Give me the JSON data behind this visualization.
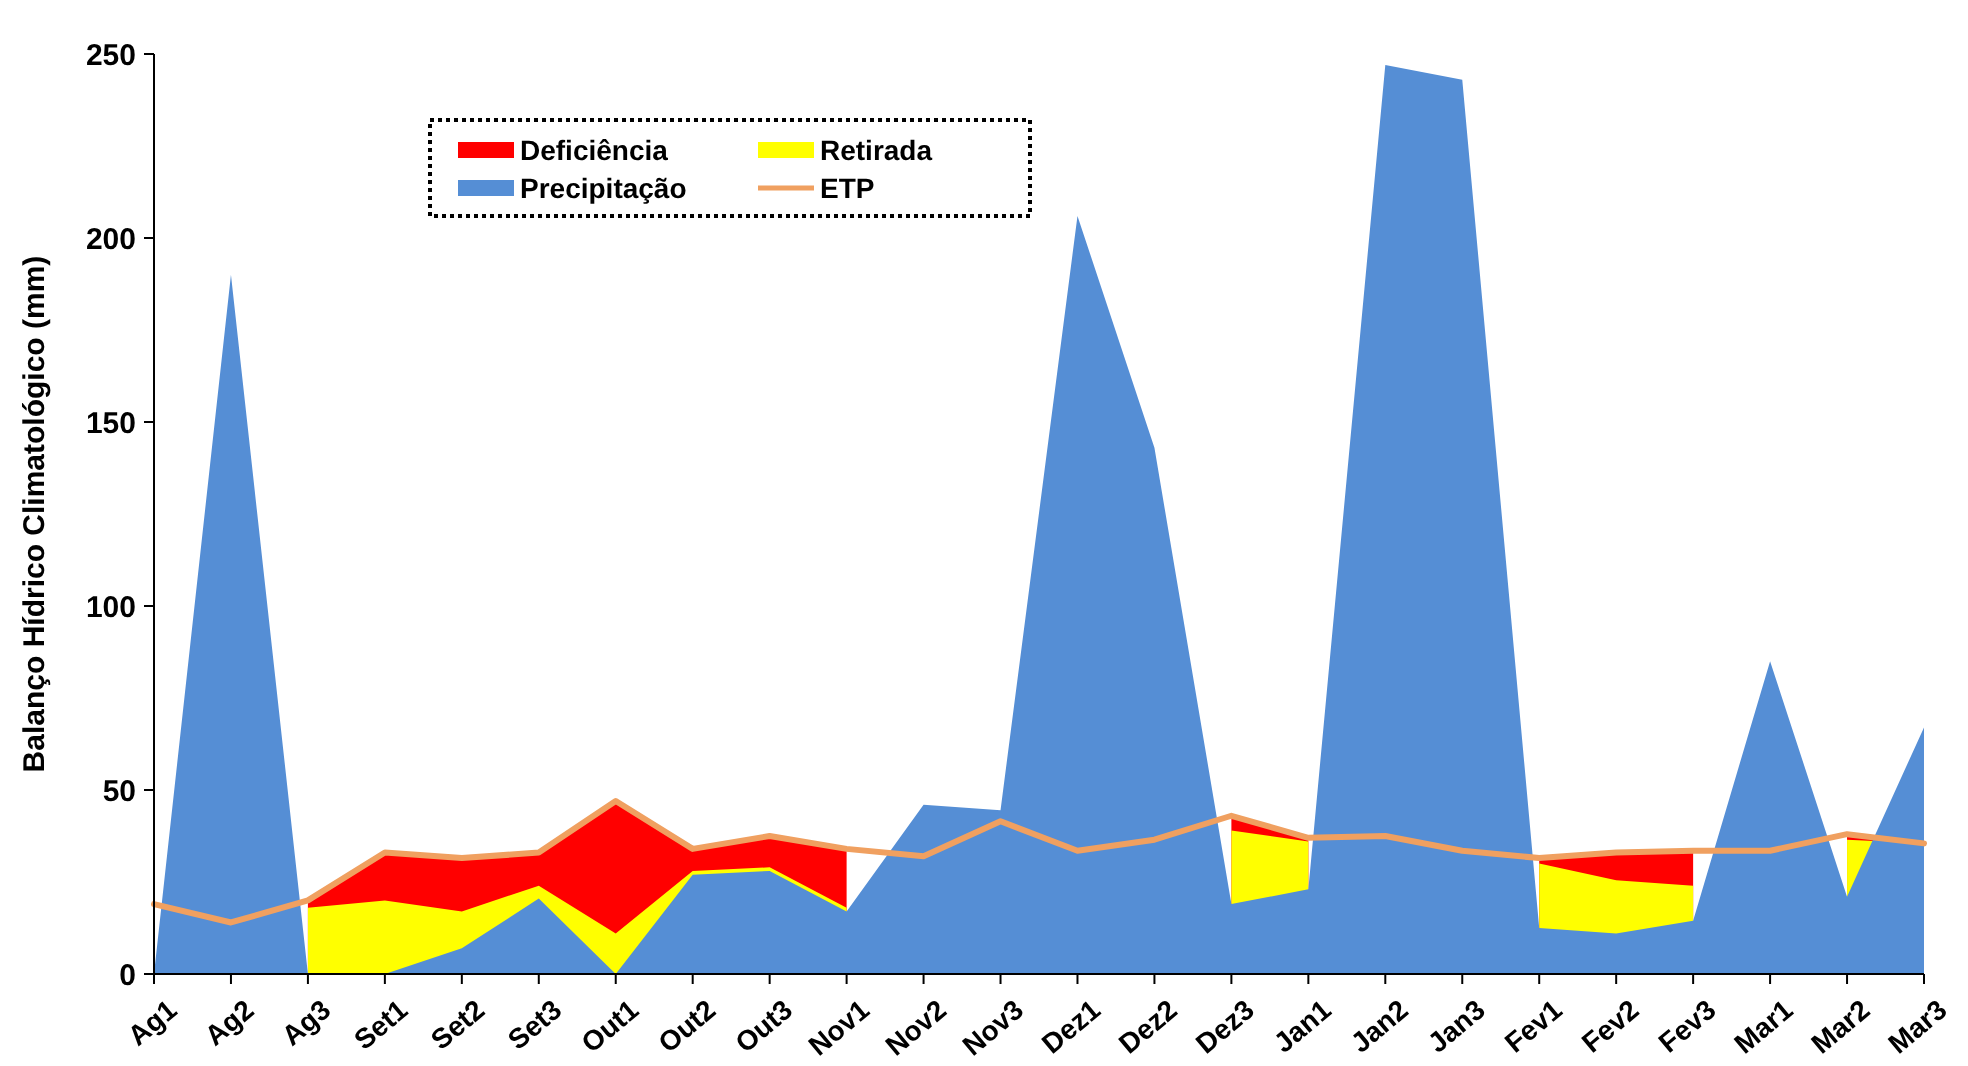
{
  "chart_data": {
    "type": "area",
    "ylabel": "Balanço Hídrico Climatológico  (mm)",
    "categories": [
      "Ag1",
      "Ag2",
      "Ag3",
      "Set1",
      "Set2",
      "Set3",
      "Out1",
      "Out2",
      "Out3",
      "Nov1",
      "Nov2",
      "Nov3",
      "Dez1",
      "Dez2",
      "Dez3",
      "Jan1",
      "Jan2",
      "Jan3",
      "Fev1",
      "Fev2",
      "Fev3",
      "Mar1",
      "Mar2",
      "Mar3"
    ],
    "ylim": [
      0,
      250
    ],
    "yticks": [
      0,
      50,
      100,
      150,
      200,
      250
    ],
    "grid": false,
    "legend": "top",
    "line_style": "solid",
    "marker": "none",
    "series": [
      {
        "name": "Deficiência",
        "color": "#ff0000",
        "values": [
          null,
          null,
          20,
          33,
          31.5,
          33,
          47,
          34,
          37.5,
          34,
          null,
          null,
          null,
          null,
          43,
          37,
          null,
          null,
          31.5,
          33,
          33.5,
          null,
          38,
          35.5
        ]
      },
      {
        "name": "Retirada",
        "color": "#ffff00",
        "values": [
          null,
          null,
          18,
          20,
          17,
          24,
          11,
          28,
          29,
          18,
          null,
          null,
          null,
          null,
          39,
          36,
          null,
          null,
          30,
          25.5,
          24,
          null,
          36.5,
          35.5
        ]
      },
      {
        "name": "Precipitação",
        "color": "#558ed5",
        "values": [
          0,
          190,
          0,
          0,
          7,
          20.5,
          0,
          27,
          28,
          17,
          46,
          44.5,
          206,
          143,
          19,
          23,
          247,
          243,
          12.5,
          11,
          14.5,
          85,
          21,
          67
        ]
      },
      {
        "name": "ETP",
        "type": "line",
        "color": "#f0a060",
        "values": [
          19,
          14,
          20,
          33,
          31.5,
          33,
          47,
          34,
          37.5,
          34,
          32,
          41.5,
          33.5,
          36.5,
          43,
          37,
          37.5,
          33.5,
          31.5,
          33,
          33.5,
          33.5,
          38,
          35.5
        ]
      }
    ]
  }
}
